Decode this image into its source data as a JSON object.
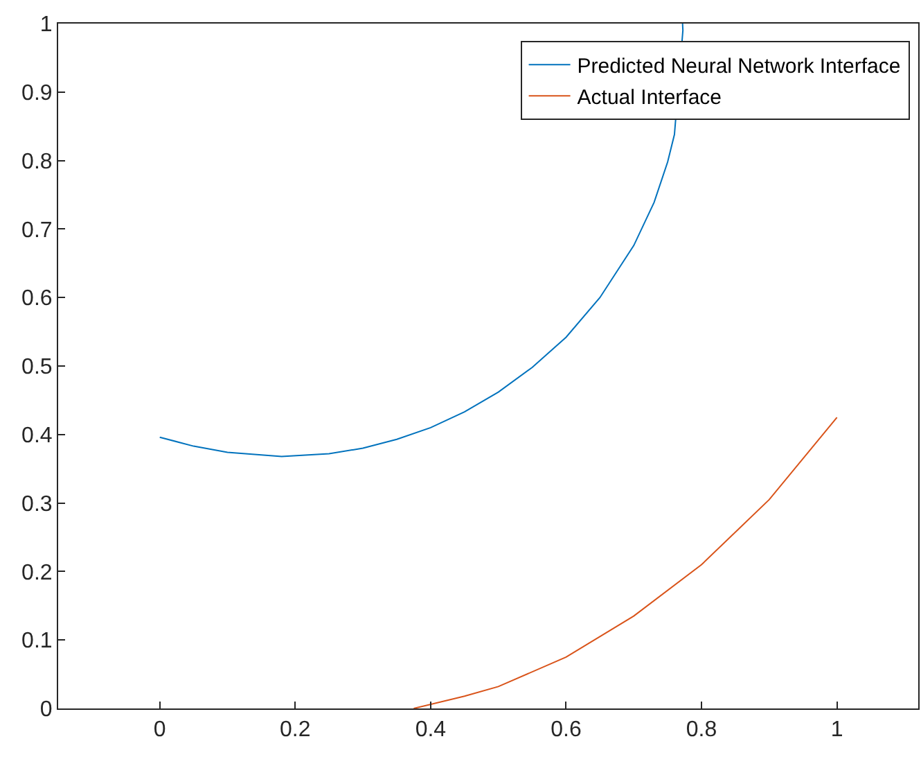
{
  "chart_data": {
    "type": "line",
    "series": [
      {
        "name": "Predicted Neural Network Interface",
        "color": "#0072bd",
        "x": [
          0,
          0.05,
          0.1,
          0.18,
          0.25,
          0.3,
          0.35,
          0.4,
          0.45,
          0.5,
          0.55,
          0.6,
          0.65,
          0.7,
          0.73,
          0.75,
          0.76,
          0.7725,
          0.772
        ],
        "values": [
          0.396,
          0.383,
          0.374,
          0.368,
          0.372,
          0.38,
          0.393,
          0.41,
          0.433,
          0.462,
          0.498,
          0.542,
          0.6,
          0.676,
          0.739,
          0.798,
          0.838,
          0.99,
          1.0
        ]
      },
      {
        "name": "Actual Interface",
        "color": "#d95319",
        "x": [
          0.375,
          0.45,
          0.5,
          0.6,
          0.7,
          0.8,
          0.9,
          1.0
        ],
        "values": [
          0,
          0.018,
          0.032,
          0.075,
          0.135,
          0.21,
          0.305,
          0.425
        ]
      }
    ],
    "xlim": [
      -0.15,
      1.12
    ],
    "xticks": [
      0,
      0.2,
      0.4,
      0.6,
      0.8,
      1
    ],
    "ylim": [
      0,
      1
    ],
    "yticks": [
      0,
      0.1,
      0.2,
      0.3,
      0.4,
      0.5,
      0.6,
      0.7,
      0.8,
      0.9,
      1
    ],
    "legend": "top right",
    "marker": "none",
    "line_style": "solid"
  }
}
